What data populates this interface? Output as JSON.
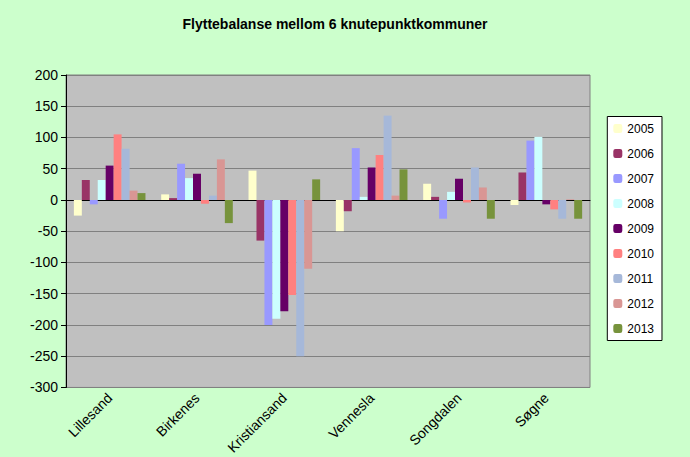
{
  "chart_data": {
    "type": "bar",
    "title": "Flyttebalanse mellom 6 knutepunktkommuner",
    "categories": [
      "Lillesand",
      "Birkenes",
      "Kristiansand",
      "Vennesla",
      "Songdalen",
      "Søgne"
    ],
    "series": [
      {
        "name": "2005",
        "color": "#ffffcc",
        "values": [
          -25,
          9,
          47,
          -50,
          26,
          -8
        ]
      },
      {
        "name": "2006",
        "color": "#993366",
        "values": [
          32,
          3,
          -65,
          -18,
          5,
          44
        ]
      },
      {
        "name": "2007",
        "color": "#9999ff",
        "values": [
          -7,
          58,
          -200,
          83,
          -30,
          95
        ]
      },
      {
        "name": "2008",
        "color": "#ccffff",
        "values": [
          32,
          35,
          -190,
          5,
          13,
          101
        ]
      },
      {
        "name": "2009",
        "color": "#660066",
        "values": [
          55,
          42,
          -178,
          52,
          34,
          -7
        ]
      },
      {
        "name": "2010",
        "color": "#ff8080",
        "values": [
          105,
          -6,
          -152,
          72,
          -4,
          -15
        ]
      },
      {
        "name": "2011",
        "color": "#a6b8d9",
        "values": [
          82,
          7,
          -250,
          135,
          52,
          -30
        ]
      },
      {
        "name": "2012",
        "color": "#d99694",
        "values": [
          15,
          65,
          -110,
          7,
          20,
          1
        ]
      },
      {
        "name": "2013",
        "color": "#77933c",
        "values": [
          11,
          -37,
          33,
          49,
          -30,
          -30
        ]
      }
    ],
    "ylim": [
      -300,
      200
    ],
    "yticks": [
      -300,
      -250,
      -200,
      -150,
      -100,
      -50,
      0,
      50,
      100,
      150,
      200
    ],
    "grid": true,
    "legend": "right"
  }
}
